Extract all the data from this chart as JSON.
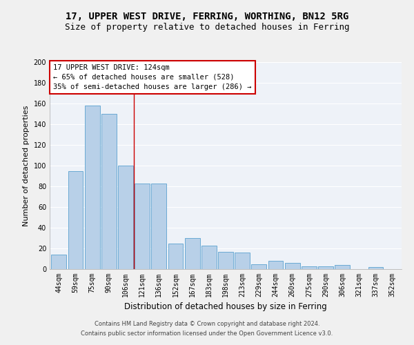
{
  "title1": "17, UPPER WEST DRIVE, FERRING, WORTHING, BN12 5RG",
  "title2": "Size of property relative to detached houses in Ferring",
  "xlabel": "Distribution of detached houses by size in Ferring",
  "ylabel": "Number of detached properties",
  "categories": [
    "44sqm",
    "59sqm",
    "75sqm",
    "90sqm",
    "106sqm",
    "121sqm",
    "136sqm",
    "152sqm",
    "167sqm",
    "183sqm",
    "198sqm",
    "213sqm",
    "229sqm",
    "244sqm",
    "260sqm",
    "275sqm",
    "290sqm",
    "306sqm",
    "321sqm",
    "337sqm",
    "352sqm"
  ],
  "values": [
    14,
    95,
    158,
    150,
    100,
    83,
    83,
    25,
    30,
    23,
    17,
    16,
    5,
    8,
    6,
    3,
    3,
    4,
    0,
    2,
    0
  ],
  "bar_color": "#b8d0e8",
  "bar_edge_color": "#6aaad4",
  "annotation_text_line1": "17 UPPER WEST DRIVE: 124sqm",
  "annotation_text_line2": "← 65% of detached houses are smaller (528)",
  "annotation_text_line3": "35% of semi-detached houses are larger (286) →",
  "annotation_box_color": "#ffffff",
  "annotation_box_edge": "#cc0000",
  "vline_color": "#cc0000",
  "footer1": "Contains HM Land Registry data © Crown copyright and database right 2024.",
  "footer2": "Contains public sector information licensed under the Open Government Licence v3.0.",
  "ylim": [
    0,
    200
  ],
  "yticks": [
    0,
    20,
    40,
    60,
    80,
    100,
    120,
    140,
    160,
    180,
    200
  ],
  "bg_color": "#eef2f8",
  "grid_color": "#ffffff",
  "title1_fontsize": 10,
  "title2_fontsize": 9,
  "tick_fontsize": 7,
  "ylabel_fontsize": 8,
  "xlabel_fontsize": 8.5,
  "footer_fontsize": 6,
  "ann_fontsize": 7.5,
  "vline_x": 4.5
}
